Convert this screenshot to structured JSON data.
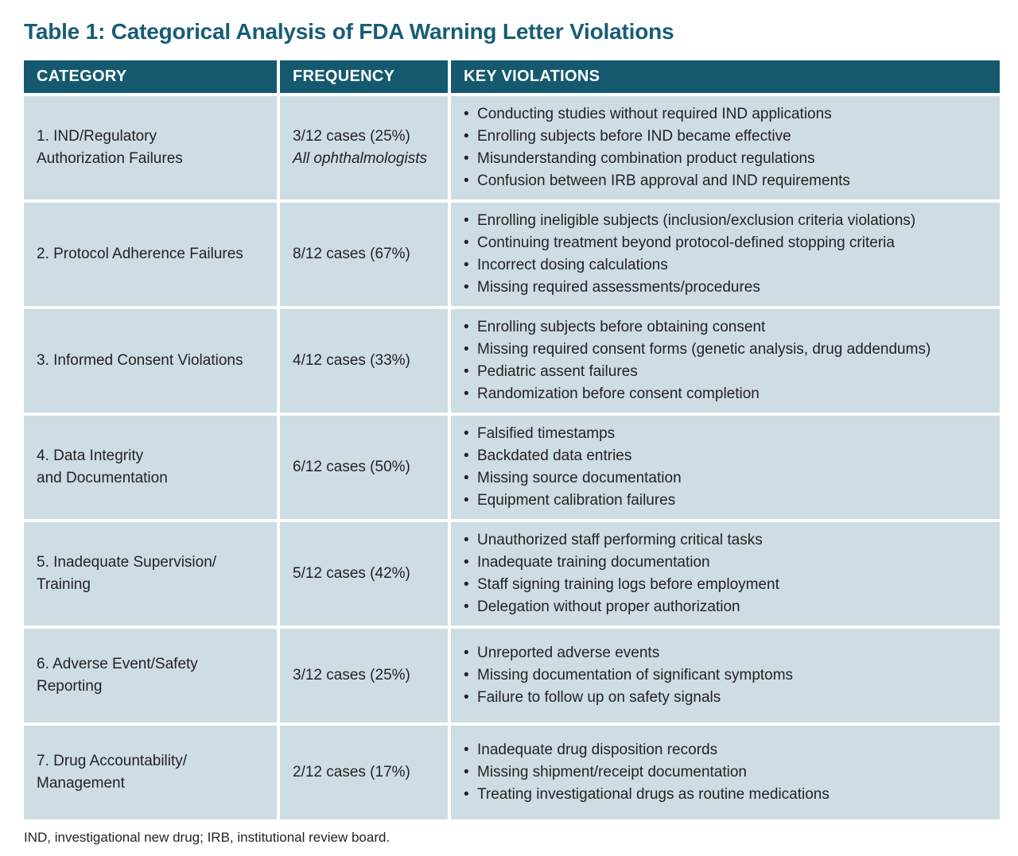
{
  "title": "Table 1: Categorical Analysis of FDA Warning Letter Violations",
  "colors": {
    "title_text": "#175d76",
    "header_bg": "#15596f",
    "header_text": "#ffffff",
    "row_bg": "#cedce3",
    "body_text": "#232323"
  },
  "table": {
    "headers": [
      "CATEGORY",
      "FREQUENCY",
      "KEY VIOLATIONS"
    ],
    "rows": [
      {
        "category": "1. IND/Regulatory\nAuthorization Failures",
        "frequency": "3/12 cases (25%)",
        "frequency_note": "All ophthalmologists",
        "violations": [
          "Conducting studies without required IND applications",
          "Enrolling subjects before IND became effective",
          "Misunderstanding combination product regulations",
          "Confusion between IRB approval and IND requirements"
        ]
      },
      {
        "category": "2. Protocol Adherence Failures",
        "frequency": "8/12 cases (67%)",
        "violations": [
          "Enrolling ineligible subjects (inclusion/exclusion criteria violations)",
          "Continuing treatment beyond protocol-defined stopping criteria",
          "Incorrect dosing calculations",
          "Missing required assessments/procedures"
        ]
      },
      {
        "category": "3. Informed Consent Violations",
        "frequency": "4/12 cases (33%)",
        "violations": [
          "Enrolling subjects before obtaining consent",
          "Missing required consent forms (genetic analysis, drug addendums)",
          "Pediatric assent failures",
          "Randomization before consent completion"
        ]
      },
      {
        "category": "4. Data Integrity\nand Documentation",
        "frequency": "6/12 cases (50%)",
        "violations": [
          "Falsified timestamps",
          "Backdated data entries",
          "Missing source documentation",
          "Equipment calibration failures"
        ]
      },
      {
        "category": "5. Inadequate Supervision/\nTraining",
        "frequency": "5/12 cases (42%)",
        "violations": [
          "Unauthorized staff performing critical tasks",
          "Inadequate training documentation",
          "Staff signing training logs before employment",
          "Delegation without proper authorization"
        ]
      },
      {
        "category": "6. Adverse Event/Safety\nReporting",
        "frequency": "3/12 cases (25%)",
        "violations": [
          "Unreported adverse events",
          "Missing documentation of significant symptoms",
          "Failure to follow up on safety signals"
        ]
      },
      {
        "category": "7. Drug Accountability/\nManagement",
        "frequency": "2/12 cases (17%)",
        "violations": [
          "Inadequate drug disposition records",
          "Missing shipment/receipt documentation",
          "Treating investigational drugs as routine medications"
        ]
      }
    ]
  },
  "footnote": "IND, investigational new drug; IRB, institutional review board."
}
